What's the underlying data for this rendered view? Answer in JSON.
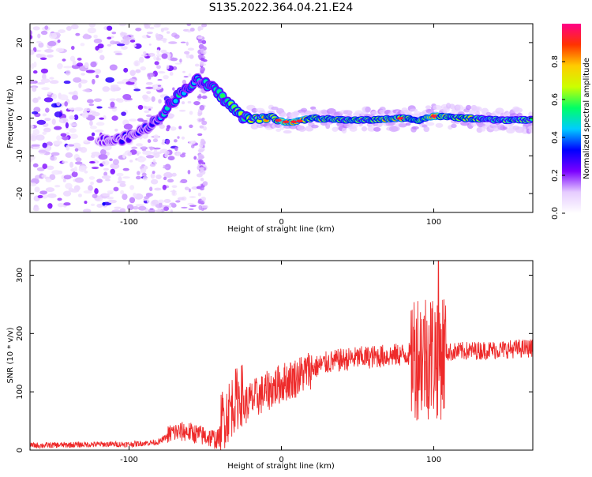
{
  "title": "S135.2022.364.04.21.E24",
  "chart_data": [
    {
      "type": "heatmap",
      "xlabel": "Height of straight line (km)",
      "ylabel": "Frequency (Hz)",
      "xlim": [
        -165,
        165
      ],
      "ylim": [
        -25,
        25
      ],
      "xticks": [
        -100,
        0,
        100
      ],
      "yticks": [
        -20,
        -10,
        0,
        10,
        20
      ],
      "grid": false,
      "colorbar": {
        "label": "Normalized spectral amplitude",
        "range": [
          0.0,
          1.0
        ],
        "ticks": [
          0.0,
          0.2,
          0.4,
          0.6,
          0.8
        ],
        "colors": [
          "#ffffff",
          "#e6ccff",
          "#7a00ff",
          "#0000ff",
          "#00ccff",
          "#00ff66",
          "#ccff00",
          "#ffcc00",
          "#ff3300",
          "#ff0088"
        ]
      },
      "ridge": [
        {
          "x": -120,
          "y": -6,
          "amp": 0.25
        },
        {
          "x": -110,
          "y": -6,
          "amp": 0.3
        },
        {
          "x": -100,
          "y": -5,
          "amp": 0.3
        },
        {
          "x": -90,
          "y": -3,
          "amp": 0.3
        },
        {
          "x": -80,
          "y": 0,
          "amp": 0.4
        },
        {
          "x": -75,
          "y": 3,
          "amp": 0.45
        },
        {
          "x": -65,
          "y": 7,
          "amp": 0.5
        },
        {
          "x": -55,
          "y": 10,
          "amp": 0.45
        },
        {
          "x": -45,
          "y": 8,
          "amp": 0.55
        },
        {
          "x": -35,
          "y": 4,
          "amp": 0.6
        },
        {
          "x": -25,
          "y": 0,
          "amp": 0.65
        },
        {
          "x": -15,
          "y": 0,
          "amp": 0.7
        },
        {
          "x": -5,
          "y": 0,
          "amp": 0.75
        },
        {
          "x": 0,
          "y": -1,
          "amp": 0.95
        },
        {
          "x": 10,
          "y": -1,
          "amp": 0.9
        },
        {
          "x": 20,
          "y": 0,
          "amp": 0.75
        },
        {
          "x": 40,
          "y": -0.5,
          "amp": 0.7
        },
        {
          "x": 60,
          "y": -0.5,
          "amp": 0.7
        },
        {
          "x": 80,
          "y": 0,
          "amp": 0.8
        },
        {
          "x": 90,
          "y": -0.5,
          "amp": 0.7
        },
        {
          "x": 100,
          "y": 0.5,
          "amp": 0.9
        },
        {
          "x": 120,
          "y": 0,
          "amp": 0.7
        },
        {
          "x": 140,
          "y": -0.5,
          "amp": 0.65
        },
        {
          "x": 165,
          "y": -0.5,
          "amp": 0.65
        }
      ]
    },
    {
      "type": "line",
      "xlabel": "Height of straight line (km)",
      "ylabel": "SNR (10 * v/v)",
      "xlim": [
        -165,
        165
      ],
      "ylim": [
        0,
        325
      ],
      "xticks": [
        -100,
        0,
        100
      ],
      "yticks": [
        0,
        100,
        200,
        300
      ],
      "grid": false,
      "line_color": "#ee2a2a",
      "series": [
        {
          "values": [
            {
              "x": -165,
              "y": 8
            },
            {
              "x": -140,
              "y": 9
            },
            {
              "x": -120,
              "y": 10
            },
            {
              "x": -100,
              "y": 10
            },
            {
              "x": -80,
              "y": 14
            },
            {
              "x": -72,
              "y": 30
            },
            {
              "x": -62,
              "y": 32
            },
            {
              "x": -52,
              "y": 25
            },
            {
              "x": -42,
              "y": 18
            },
            {
              "x": -36,
              "y": 40
            },
            {
              "x": -30,
              "y": 65
            },
            {
              "x": -20,
              "y": 85
            },
            {
              "x": -10,
              "y": 100
            },
            {
              "x": 0,
              "y": 115
            },
            {
              "x": 10,
              "y": 125
            },
            {
              "x": 20,
              "y": 140
            },
            {
              "x": 30,
              "y": 150
            },
            {
              "x": 40,
              "y": 155
            },
            {
              "x": 50,
              "y": 158
            },
            {
              "x": 60,
              "y": 160
            },
            {
              "x": 70,
              "y": 162
            },
            {
              "x": 80,
              "y": 164
            },
            {
              "x": 90,
              "y": 166
            },
            {
              "x": 100,
              "y": 165
            },
            {
              "x": 110,
              "y": 168
            },
            {
              "x": 120,
              "y": 170
            },
            {
              "x": 140,
              "y": 172
            },
            {
              "x": 165,
              "y": 175
            }
          ]
        }
      ]
    }
  ]
}
